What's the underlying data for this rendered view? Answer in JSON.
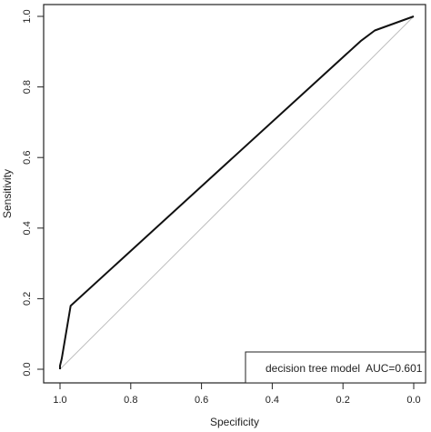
{
  "chart_data": {
    "type": "line",
    "xlabel": "Specificity",
    "ylabel": "Sensitivity",
    "x_reversed": true,
    "xlim": [
      1.0,
      0.0
    ],
    "ylim": [
      0.0,
      1.0
    ],
    "x_ticks": [
      "1.0",
      "0.8",
      "0.6",
      "0.4",
      "0.2",
      "0.0"
    ],
    "y_ticks": [
      "0.0",
      "0.2",
      "0.4",
      "0.6",
      "0.8",
      "1.0"
    ],
    "grid": false,
    "legend": {
      "position": "bottom-right",
      "entries": [
        "decision tree model  AUC=0.601"
      ]
    },
    "reference_line": {
      "x": [
        1.0,
        0.0
      ],
      "y": [
        0.0,
        1.0
      ],
      "color": "#bdbdbd"
    },
    "series": [
      {
        "color": "#111111",
        "x": [
          1.0,
          1.0,
          0.995,
          0.97,
          0.15,
          0.11,
          0.0
        ],
        "y": [
          0.0,
          0.01,
          0.03,
          0.18,
          0.93,
          0.96,
          1.0
        ]
      }
    ]
  }
}
